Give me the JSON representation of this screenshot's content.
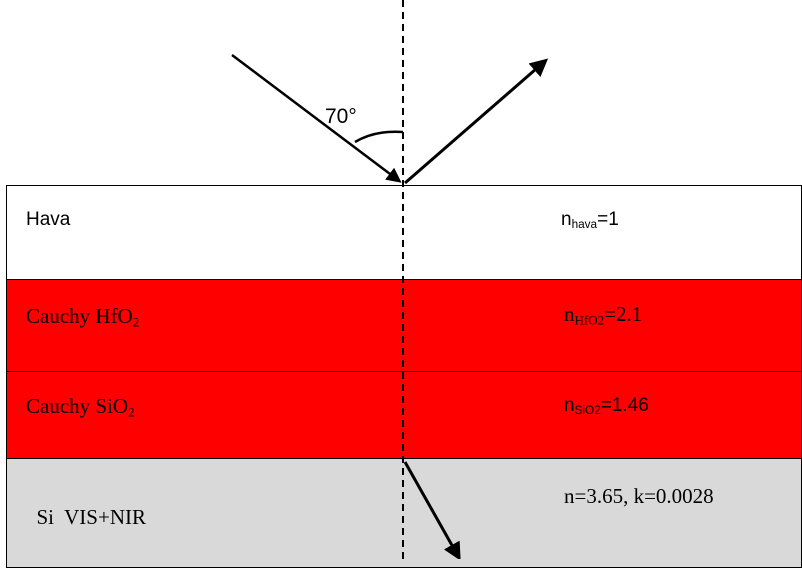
{
  "angle": {
    "label": "70°"
  },
  "layers": [
    {
      "id": "air",
      "name": "Hava",
      "name_sub": "",
      "index_prefix": "n",
      "index_sub": "hava",
      "index_value": "=1"
    },
    {
      "id": "hfo2",
      "name": "Cauchy HfO",
      "name_sub": "2",
      "index_prefix": "n",
      "index_sub": "HfO2",
      "index_value": "=2.1"
    },
    {
      "id": "sio2",
      "name": "Cauchy SiO",
      "name_sub": "2",
      "index_prefix": "n",
      "index_sub": "SiO2",
      "index_value": "=1.46"
    },
    {
      "id": "si",
      "name": "Si  VIS+NIR",
      "name_sub": "",
      "index_prefix": "",
      "index_sub": "",
      "index_value": "n=3.65, k=0.0028"
    }
  ],
  "colors": {
    "film": "#ff0000",
    "substrate": "#d9d9d9",
    "ambient": "#ffffff",
    "line": "#000000"
  }
}
